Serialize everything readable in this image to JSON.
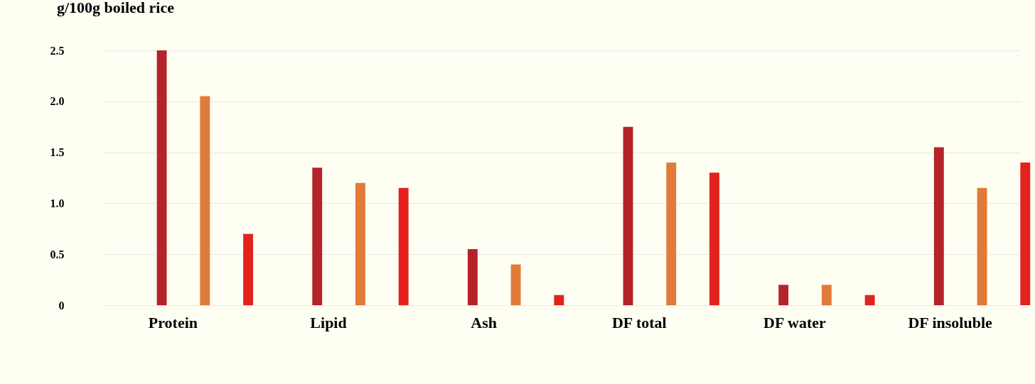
{
  "chart_data": {
    "type": "bar",
    "title": "g/100g boiled rice",
    "categories": [
      "Protein",
      "Lipid",
      "Ash",
      "DF total",
      "DF water",
      "DF insoluble"
    ],
    "series": [
      {
        "color": "#b5222a",
        "values": [
          2.5,
          1.35,
          0.55,
          1.75,
          0.2,
          1.55
        ]
      },
      {
        "color": "#e07b39",
        "values": [
          2.05,
          1.2,
          0.4,
          1.4,
          0.2,
          1.15
        ]
      },
      {
        "color": "#e3211d",
        "values": [
          0.7,
          1.15,
          0.1,
          1.3,
          0.1,
          1.4
        ]
      }
    ],
    "ylim": [
      0,
      2.5
    ],
    "yticks": [
      0,
      0.5,
      {
        "value": 1,
        "label": "1.0"
      },
      1.5,
      {
        "value": 2,
        "label": "2.0"
      },
      2.5
    ],
    "grid": "y"
  }
}
